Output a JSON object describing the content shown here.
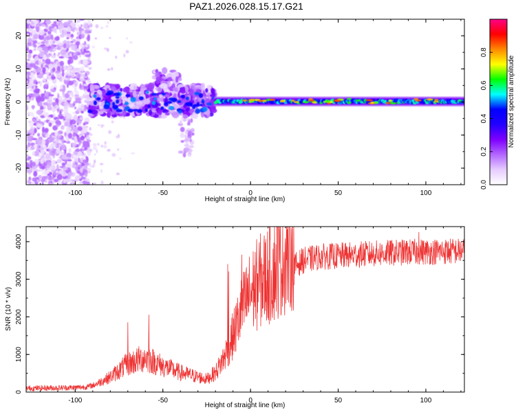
{
  "figure_title": "PAZ1.2026.028.15.17.G21",
  "colorbar": {
    "label": "Normalized spectral amplitude",
    "range": [
      0.0,
      1.0
    ],
    "ticks": [
      "0.0",
      "0.2",
      "0.4",
      "0.6",
      "0.8"
    ],
    "tick_values": [
      0.0,
      0.2,
      0.4,
      0.6,
      0.8
    ],
    "colors": [
      "#ffffff",
      "#e6ccff",
      "#b266ff",
      "#7f00ff",
      "#2200ff",
      "#0000ff",
      "#00ffff",
      "#00ff00",
      "#ffff00",
      "#ff8800",
      "#ff0000",
      "#ff0088"
    ]
  },
  "chart_data": [
    {
      "type": "heatmap",
      "title": "",
      "xlabel": "Height of straight line (km)",
      "ylabel": "Frequency (Hz)",
      "xlim": [
        -128,
        122
      ],
      "ylim": [
        -25,
        25
      ],
      "xticks": [
        -100,
        -50,
        0,
        50,
        100
      ],
      "xtick_labels": [
        "-100",
        "-50",
        "0",
        "50",
        "100"
      ],
      "yticks": [
        -20,
        -10,
        0,
        10,
        20
      ],
      "ytick_labels": [
        "-20",
        "-10",
        "0",
        "10",
        "20"
      ],
      "regions": [
        {
          "name": "noise",
          "x": [
            -128,
            -92
          ],
          "y": [
            -25,
            25
          ],
          "amplitude": 0.1
        },
        {
          "name": "scatter",
          "x": [
            -92,
            -20
          ],
          "y": [
            -5,
            7
          ],
          "amplitude": 0.2
        },
        {
          "name": "spur",
          "x": [
            -40,
            -33
          ],
          "y": [
            -16,
            -4
          ],
          "amplitude": 0.12
        },
        {
          "name": "signal_band",
          "x": [
            -20,
            122
          ],
          "y": [
            -1.5,
            1.8
          ],
          "amplitude": 0.45
        },
        {
          "name": "peaks",
          "x": [
            -5,
            112
          ],
          "y": [
            -0.5,
            1.0
          ],
          "amplitude": 0.85
        }
      ]
    },
    {
      "type": "line",
      "title": "",
      "xlabel": "Height of straight line (km)",
      "ylabel": "SNR (10 * v/v)",
      "xlim": [
        -128,
        122
      ],
      "ylim": [
        0,
        4400
      ],
      "xticks": [
        -100,
        -50,
        0,
        50,
        100
      ],
      "xtick_labels": [
        "-100",
        "-50",
        "0",
        "50",
        "100"
      ],
      "yticks": [
        0,
        1000,
        2000,
        3000,
        4000
      ],
      "ytick_labels": [
        "0",
        "1000",
        "2000",
        "3000",
        "4000"
      ],
      "color": "#ee3333",
      "envelope": {
        "x": [
          -128,
          -100,
          -90,
          -80,
          -70,
          -60,
          -50,
          -40,
          -30,
          -25,
          -20,
          -15,
          -10,
          -5,
          0,
          5,
          10,
          15,
          20,
          25,
          30,
          40,
          50,
          60,
          70,
          80,
          90,
          100,
          110,
          122
        ],
        "y": [
          100,
          120,
          150,
          350,
          650,
          800,
          600,
          450,
          350,
          300,
          450,
          800,
          1300,
          1900,
          2300,
          2550,
          2700,
          2900,
          3150,
          3350,
          3500,
          3600,
          3620,
          3650,
          3680,
          3700,
          3720,
          3730,
          3740,
          3750
        ]
      },
      "spikes": [
        {
          "x": -70,
          "y": 1850
        },
        {
          "x": -58,
          "y": 2050
        },
        {
          "x": -13,
          "y": 3400
        },
        {
          "x": -12.5,
          "y": 3200
        },
        {
          "x": -5,
          "y": 3650
        },
        {
          "x": 96,
          "y": 4250
        }
      ]
    }
  ]
}
